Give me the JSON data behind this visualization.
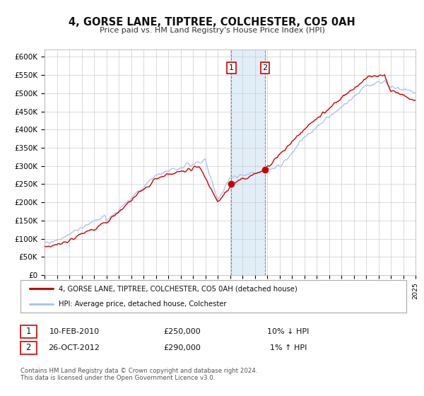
{
  "title": "4, GORSE LANE, TIPTREE, COLCHESTER, CO5 0AH",
  "subtitle": "Price paid vs. HM Land Registry's House Price Index (HPI)",
  "hpi_color": "#aec6e8",
  "price_color": "#cc0000",
  "bg_color": "#ffffff",
  "grid_color": "#cccccc",
  "sale1_x": 2010.1,
  "sale1_y": 250000,
  "sale2_x": 2012.82,
  "sale2_y": 290000,
  "shade_x1": 2010.1,
  "shade_x2": 2012.82,
  "ylim": [
    0,
    620000
  ],
  "yticks": [
    0,
    50000,
    100000,
    150000,
    200000,
    250000,
    300000,
    350000,
    400000,
    450000,
    500000,
    550000,
    600000
  ],
  "ytick_labels": [
    "£0",
    "£50K",
    "£100K",
    "£150K",
    "£200K",
    "£250K",
    "£300K",
    "£350K",
    "£400K",
    "£450K",
    "£500K",
    "£550K",
    "£600K"
  ],
  "xlim_start": 1995,
  "xlim_end": 2025,
  "legend_line1": "4, GORSE LANE, TIPTREE, COLCHESTER, CO5 0AH (detached house)",
  "legend_line2": "HPI: Average price, detached house, Colchester",
  "table_row1_date": "10-FEB-2010",
  "table_row1_price": "£250,000",
  "table_row1_hpi": "10% ↓ HPI",
  "table_row2_date": "26-OCT-2012",
  "table_row2_price": "£290,000",
  "table_row2_hpi": "1% ↑ HPI",
  "footnote": "Contains HM Land Registry data © Crown copyright and database right 2024.\nThis data is licensed under the Open Government Licence v3.0."
}
